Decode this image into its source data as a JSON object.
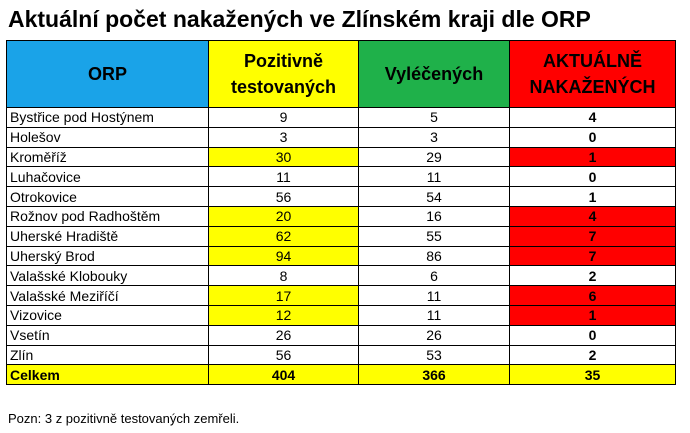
{
  "title": "Aktuální počet nakažených ve Zlínském kraji dle ORP",
  "headers": {
    "orp": "ORP",
    "positive_line1": "Pozitivně",
    "positive_line2": "testovaných",
    "recovered": "Vyléčených",
    "active_line1": "AKTUÁLNĚ",
    "active_line2": "NAKAŽENÝCH"
  },
  "colors": {
    "header_orp": "#1aa3e8",
    "highlight_yellow": "#ffff00",
    "header_recovered": "#1fb14a",
    "highlight_red": "#ff0000"
  },
  "rows": [
    {
      "name": "Bystřice pod Hostýnem",
      "positive": "9",
      "recovered": "5",
      "active": "4",
      "highlight": false
    },
    {
      "name": "Holešov",
      "positive": "3",
      "recovered": "3",
      "active": "0",
      "highlight": false
    },
    {
      "name": "Kroměříž",
      "positive": "30",
      "recovered": "29",
      "active": "1",
      "highlight": true
    },
    {
      "name": "Luhačovice",
      "positive": "11",
      "recovered": "11",
      "active": "0",
      "highlight": false
    },
    {
      "name": "Otrokovice",
      "positive": "56",
      "recovered": "54",
      "active": "1",
      "highlight": false
    },
    {
      "name": "Rožnov pod Radhoštěm",
      "positive": "20",
      "recovered": "16",
      "active": "4",
      "highlight": true
    },
    {
      "name": "Uherské Hradiště",
      "positive": "62",
      "recovered": "55",
      "active": "7",
      "highlight": true
    },
    {
      "name": "Uherský Brod",
      "positive": "94",
      "recovered": "86",
      "active": "7",
      "highlight": true
    },
    {
      "name": "Valašské Klobouky",
      "positive": "8",
      "recovered": "6",
      "active": "2",
      "highlight": false
    },
    {
      "name": "Valašské Meziříčí",
      "positive": "17",
      "recovered": "11",
      "active": "6",
      "highlight": true
    },
    {
      "name": "Vizovice",
      "positive": "12",
      "recovered": "11",
      "active": "1",
      "highlight": true
    },
    {
      "name": "Vsetín",
      "positive": "26",
      "recovered": "26",
      "active": "0",
      "highlight": false
    },
    {
      "name": "Zlín",
      "positive": "56",
      "recovered": "53",
      "active": "2",
      "highlight": false
    }
  ],
  "total": {
    "name": "Celkem",
    "positive": "404",
    "recovered": "366",
    "active": "35"
  },
  "note": "Pozn: 3 z pozitivně testovaných zemřeli."
}
